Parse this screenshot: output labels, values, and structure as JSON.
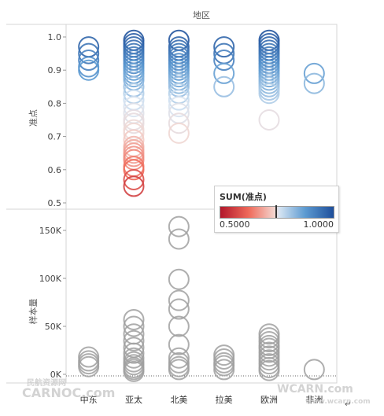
{
  "chart_data": [
    {
      "type": "scatter",
      "mark": "circle",
      "title": "地区",
      "ylabel": "准点",
      "ylim": [
        0.5,
        1.0
      ],
      "yticks": [
        "0.5",
        "0.6",
        "0.7",
        "0.8",
        "0.9",
        "1.0"
      ],
      "categories": [
        "中东",
        "亚太",
        "北美",
        "拉美",
        "欧洲",
        "非洲"
      ],
      "color_by": "SUM(准点)",
      "points": {
        "中东": [
          0.97,
          0.95,
          0.93,
          0.91,
          0.9
        ],
        "亚太": [
          0.99,
          0.98,
          0.97,
          0.96,
          0.95,
          0.94,
          0.93,
          0.92,
          0.91,
          0.9,
          0.89,
          0.88,
          0.87,
          0.85,
          0.83,
          0.81,
          0.79,
          0.77,
          0.75,
          0.74,
          0.72,
          0.71,
          0.69,
          0.67,
          0.66,
          0.65,
          0.64,
          0.63,
          0.61,
          0.6,
          0.57,
          0.55
        ],
        "北美": [
          0.99,
          0.97,
          0.96,
          0.95,
          0.94,
          0.93,
          0.92,
          0.91,
          0.9,
          0.89,
          0.88,
          0.87,
          0.86,
          0.85,
          0.83,
          0.81,
          0.79,
          0.77,
          0.74,
          0.71
        ],
        "拉美": [
          0.97,
          0.95,
          0.93,
          0.89,
          0.85
        ],
        "欧洲": [
          0.99,
          0.98,
          0.97,
          0.96,
          0.95,
          0.94,
          0.93,
          0.92,
          0.91,
          0.9,
          0.89,
          0.88,
          0.87,
          0.86,
          0.85,
          0.84,
          0.83,
          0.75
        ],
        "非洲": [
          0.89,
          0.86
        ]
      }
    },
    {
      "type": "scatter",
      "mark": "circle",
      "ylabel": "样本量",
      "ylim": [
        0,
        160000
      ],
      "yticks": [
        "0K",
        "50K",
        "100K",
        "150K"
      ],
      "categories": [
        "中东",
        "亚太",
        "北美",
        "拉美",
        "欧洲",
        "非洲"
      ],
      "color": "#a0a0a0",
      "points": {
        "中东": [
          18000,
          14000,
          11000,
          8000
        ],
        "亚太": [
          57000,
          50000,
          42000,
          35000,
          28000,
          22000,
          17000,
          13000,
          10000,
          7000,
          5000,
          3000
        ],
        "北美": [
          154000,
          141000,
          99000,
          77000,
          68000,
          50000,
          31000,
          17000,
          12000,
          8000,
          5000
        ],
        "拉美": [
          20000,
          16000,
          12000,
          9000,
          5000
        ],
        "欧洲": [
          42000,
          38000,
          34000,
          30000,
          27000,
          23000,
          19000,
          15000,
          11000,
          7000,
          4000
        ],
        "非洲": [
          5000
        ]
      }
    }
  ],
  "legend": {
    "title": "SUM(准点)",
    "min_label": "0.5000",
    "max_label": "1.0000",
    "colors": [
      "#b2182b",
      "#ef6a5a",
      "#f3d6d0",
      "#d6e4f2",
      "#5c9ad1",
      "#1f4f9b"
    ]
  },
  "watermark": {
    "left_top": "民航资源网",
    "left_main": "CARNOC.com",
    "right_main": "WCARN.com",
    "right_bottom": "www.wcarn.com"
  },
  "corner_mark": "↵"
}
